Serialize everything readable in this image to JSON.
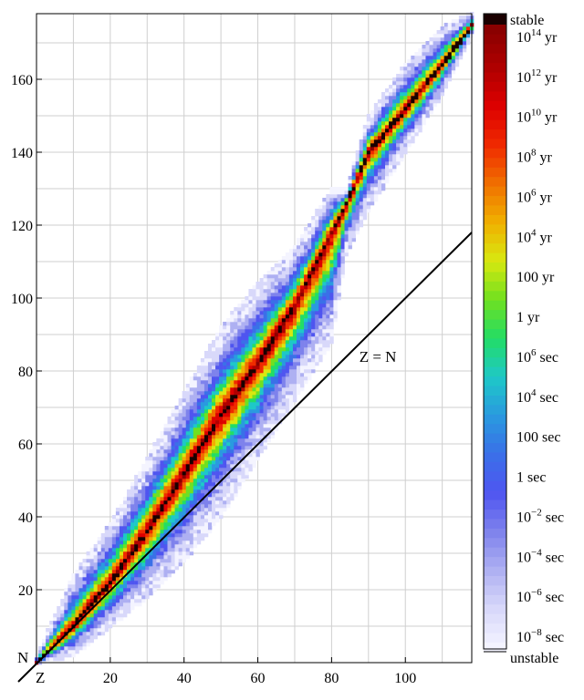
{
  "chart_data": {
    "type": "heatmap",
    "title": "",
    "xlabel": "Z",
    "ylabel": "N",
    "xlim": [
      0,
      118
    ],
    "ylim": [
      0,
      178
    ],
    "x_ticks": [
      "20",
      "40",
      "60",
      "80",
      "100"
    ],
    "y_ticks": [
      "20",
      "40",
      "60",
      "80",
      "100",
      "120",
      "140",
      "160"
    ],
    "grid": true,
    "annotation": "Z = N",
    "colorbar": {
      "top_label": "stable",
      "bottom_label": "unstable",
      "labels": [
        {
          "base": "10",
          "exp": "14",
          "unit": "yr"
        },
        {
          "base": "10",
          "exp": "12",
          "unit": "yr"
        },
        {
          "base": "10",
          "exp": "10",
          "unit": "yr"
        },
        {
          "base": "10",
          "exp": "8",
          "unit": "yr"
        },
        {
          "base": "10",
          "exp": "6",
          "unit": "yr"
        },
        {
          "base": "10",
          "exp": "4",
          "unit": "yr"
        },
        {
          "base": "100",
          "exp": "",
          "unit": "yr"
        },
        {
          "base": "1",
          "exp": "",
          "unit": "yr"
        },
        {
          "base": "10",
          "exp": "6",
          "unit": "sec"
        },
        {
          "base": "10",
          "exp": "4",
          "unit": "sec"
        },
        {
          "base": "100",
          "exp": "",
          "unit": "sec"
        },
        {
          "base": "1",
          "exp": "",
          "unit": "sec"
        },
        {
          "base": "10",
          "exp": "−2",
          "unit": "sec"
        },
        {
          "base": "10",
          "exp": "−4",
          "unit": "sec"
        },
        {
          "base": "10",
          "exp": "−6",
          "unit": "sec"
        },
        {
          "base": "10",
          "exp": "−8",
          "unit": "sec"
        }
      ],
      "stops": [
        "#f4f4ff",
        "#d8d8fa",
        "#aeb0f2",
        "#7e82ec",
        "#4f55f0",
        "#3a70e8",
        "#2a9adf",
        "#1ec8c8",
        "#22dd66",
        "#70e020",
        "#d8e810",
        "#f0b000",
        "#f07000",
        "#f02a00",
        "#dd0000",
        "#b00000",
        "#8a0000"
      ],
      "stable_color": "#1a0000"
    },
    "stability_band": [
      {
        "z": 0,
        "n_min": 0,
        "n_max": 2,
        "stable_n": 0
      },
      {
        "z": 10,
        "n_min": 2,
        "n_max": 24,
        "stable_n": 10
      },
      {
        "z": 20,
        "n_min": 10,
        "n_max": 38,
        "stable_n": 22
      },
      {
        "z": 30,
        "n_min": 18,
        "n_max": 56,
        "stable_n": 36
      },
      {
        "z": 40,
        "n_min": 28,
        "n_max": 74,
        "stable_n": 52
      },
      {
        "z": 50,
        "n_min": 40,
        "n_max": 92,
        "stable_n": 68
      },
      {
        "z": 60,
        "n_min": 56,
        "n_max": 104,
        "stable_n": 82
      },
      {
        "z": 70,
        "n_min": 72,
        "n_max": 114,
        "stable_n": 98
      },
      {
        "z": 80,
        "n_min": 88,
        "n_max": 130,
        "stable_n": 118
      },
      {
        "z": 84,
        "n_min": 112,
        "n_max": 130,
        "stable_n": 126
      },
      {
        "z": 90,
        "n_min": 124,
        "n_max": 150,
        "stable_n": 140
      },
      {
        "z": 100,
        "n_min": 140,
        "n_max": 164,
        "stable_n": 152
      },
      {
        "z": 110,
        "n_min": 156,
        "n_max": 174,
        "stable_n": 164
      },
      {
        "z": 118,
        "n_min": 172,
        "n_max": 178,
        "stable_n": 175
      }
    ]
  }
}
